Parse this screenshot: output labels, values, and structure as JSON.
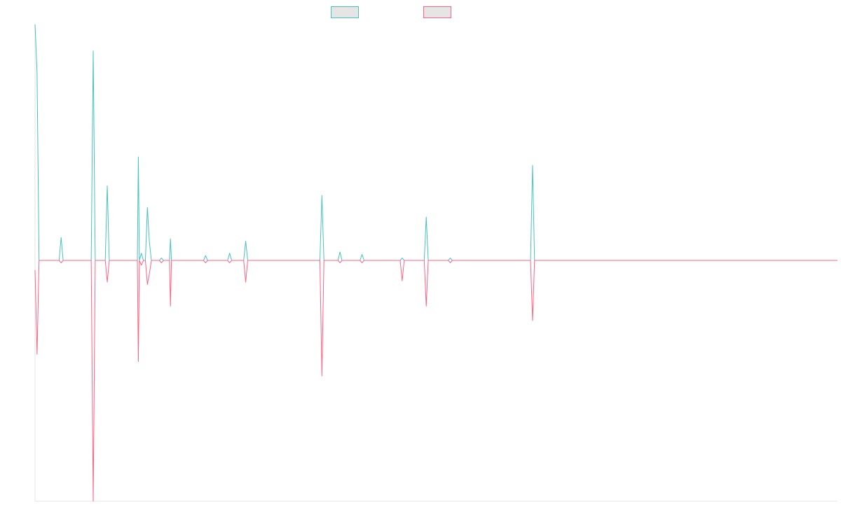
{
  "chart_data": {
    "type": "line",
    "title": "",
    "xlabel": "",
    "ylabel": "",
    "grid": false,
    "legend_placement": "top-center",
    "x_range": [
      0,
      400
    ],
    "ylim": [
      -1.0,
      1.0
    ],
    "baseline": 0,
    "series": [
      {
        "color": "#4bc0c0",
        "legend_fill": "#e5e5e5",
        "points": [
          [
            0,
            0.98
          ],
          [
            1,
            0.78
          ],
          [
            2,
            0
          ],
          [
            4,
            0
          ],
          [
            12,
            0
          ],
          [
            13,
            0.095
          ],
          [
            14,
            0
          ],
          [
            28,
            0
          ],
          [
            29,
            0.87
          ],
          [
            30,
            0
          ],
          [
            35,
            0
          ],
          [
            36,
            0.31
          ],
          [
            37,
            0
          ],
          [
            51,
            0
          ],
          [
            51.5,
            0.43
          ],
          [
            52,
            0
          ],
          [
            53,
            0.03
          ],
          [
            54,
            0
          ],
          [
            55,
            0
          ],
          [
            56,
            0.22
          ],
          [
            57,
            0.075
          ],
          [
            58,
            0
          ],
          [
            62,
            0
          ],
          [
            63,
            0.01
          ],
          [
            64,
            0
          ],
          [
            67,
            0
          ],
          [
            67.5,
            0.09
          ],
          [
            68,
            0
          ],
          [
            70,
            0
          ],
          [
            84,
            0
          ],
          [
            85,
            0.02
          ],
          [
            86,
            0
          ],
          [
            96,
            0
          ],
          [
            97,
            0.03
          ],
          [
            98,
            0
          ],
          [
            104,
            0
          ],
          [
            105,
            0.08
          ],
          [
            106,
            0
          ],
          [
            142,
            0
          ],
          [
            143,
            0.27
          ],
          [
            144,
            0
          ],
          [
            151,
            0
          ],
          [
            152,
            0.035
          ],
          [
            153,
            0
          ],
          [
            162,
            0
          ],
          [
            163,
            0.025
          ],
          [
            164,
            0
          ],
          [
            182,
            0
          ],
          [
            183,
            0.01
          ],
          [
            184,
            0
          ],
          [
            194,
            0
          ],
          [
            195,
            0.18
          ],
          [
            196,
            0
          ],
          [
            206,
            0
          ],
          [
            207,
            0.01
          ],
          [
            208,
            0
          ],
          [
            247,
            0
          ],
          [
            248,
            0.395
          ],
          [
            249,
            0
          ],
          [
            400,
            0
          ]
        ]
      },
      {
        "color": "#ff6384",
        "legend_fill": "#e5e5e5",
        "points": [
          [
            0,
            -0.04
          ],
          [
            1,
            -0.39
          ],
          [
            2,
            0
          ],
          [
            4,
            0
          ],
          [
            12,
            0
          ],
          [
            13,
            -0.01
          ],
          [
            14,
            0
          ],
          [
            28,
            0
          ],
          [
            29,
            -1.0
          ],
          [
            30,
            0
          ],
          [
            35,
            0
          ],
          [
            36,
            -0.09
          ],
          [
            37,
            0
          ],
          [
            51,
            0
          ],
          [
            51.5,
            -0.42
          ],
          [
            52,
            0
          ],
          [
            53,
            -0.02
          ],
          [
            54,
            0
          ],
          [
            55,
            0
          ],
          [
            56,
            -0.1
          ],
          [
            57,
            -0.055
          ],
          [
            58,
            0
          ],
          [
            62,
            0
          ],
          [
            63,
            -0.01
          ],
          [
            64,
            0
          ],
          [
            67,
            0
          ],
          [
            67.5,
            -0.19
          ],
          [
            68,
            0
          ],
          [
            70,
            0
          ],
          [
            84,
            0
          ],
          [
            85,
            -0.01
          ],
          [
            86,
            0
          ],
          [
            96,
            0
          ],
          [
            97,
            -0.01
          ],
          [
            98,
            0
          ],
          [
            104,
            0
          ],
          [
            105,
            -0.09
          ],
          [
            106,
            0
          ],
          [
            142,
            0
          ],
          [
            143,
            -0.48
          ],
          [
            144,
            0
          ],
          [
            151,
            0
          ],
          [
            152,
            -0.01
          ],
          [
            153,
            0
          ],
          [
            162,
            0
          ],
          [
            163,
            -0.01
          ],
          [
            164,
            0
          ],
          [
            182,
            0
          ],
          [
            183,
            -0.085
          ],
          [
            184,
            0
          ],
          [
            194,
            0
          ],
          [
            195,
            -0.19
          ],
          [
            196,
            0
          ],
          [
            206,
            0
          ],
          [
            207,
            -0.01
          ],
          [
            208,
            0
          ],
          [
            247,
            0
          ],
          [
            248,
            -0.25
          ],
          [
            249,
            0
          ],
          [
            400,
            0
          ]
        ]
      }
    ]
  }
}
